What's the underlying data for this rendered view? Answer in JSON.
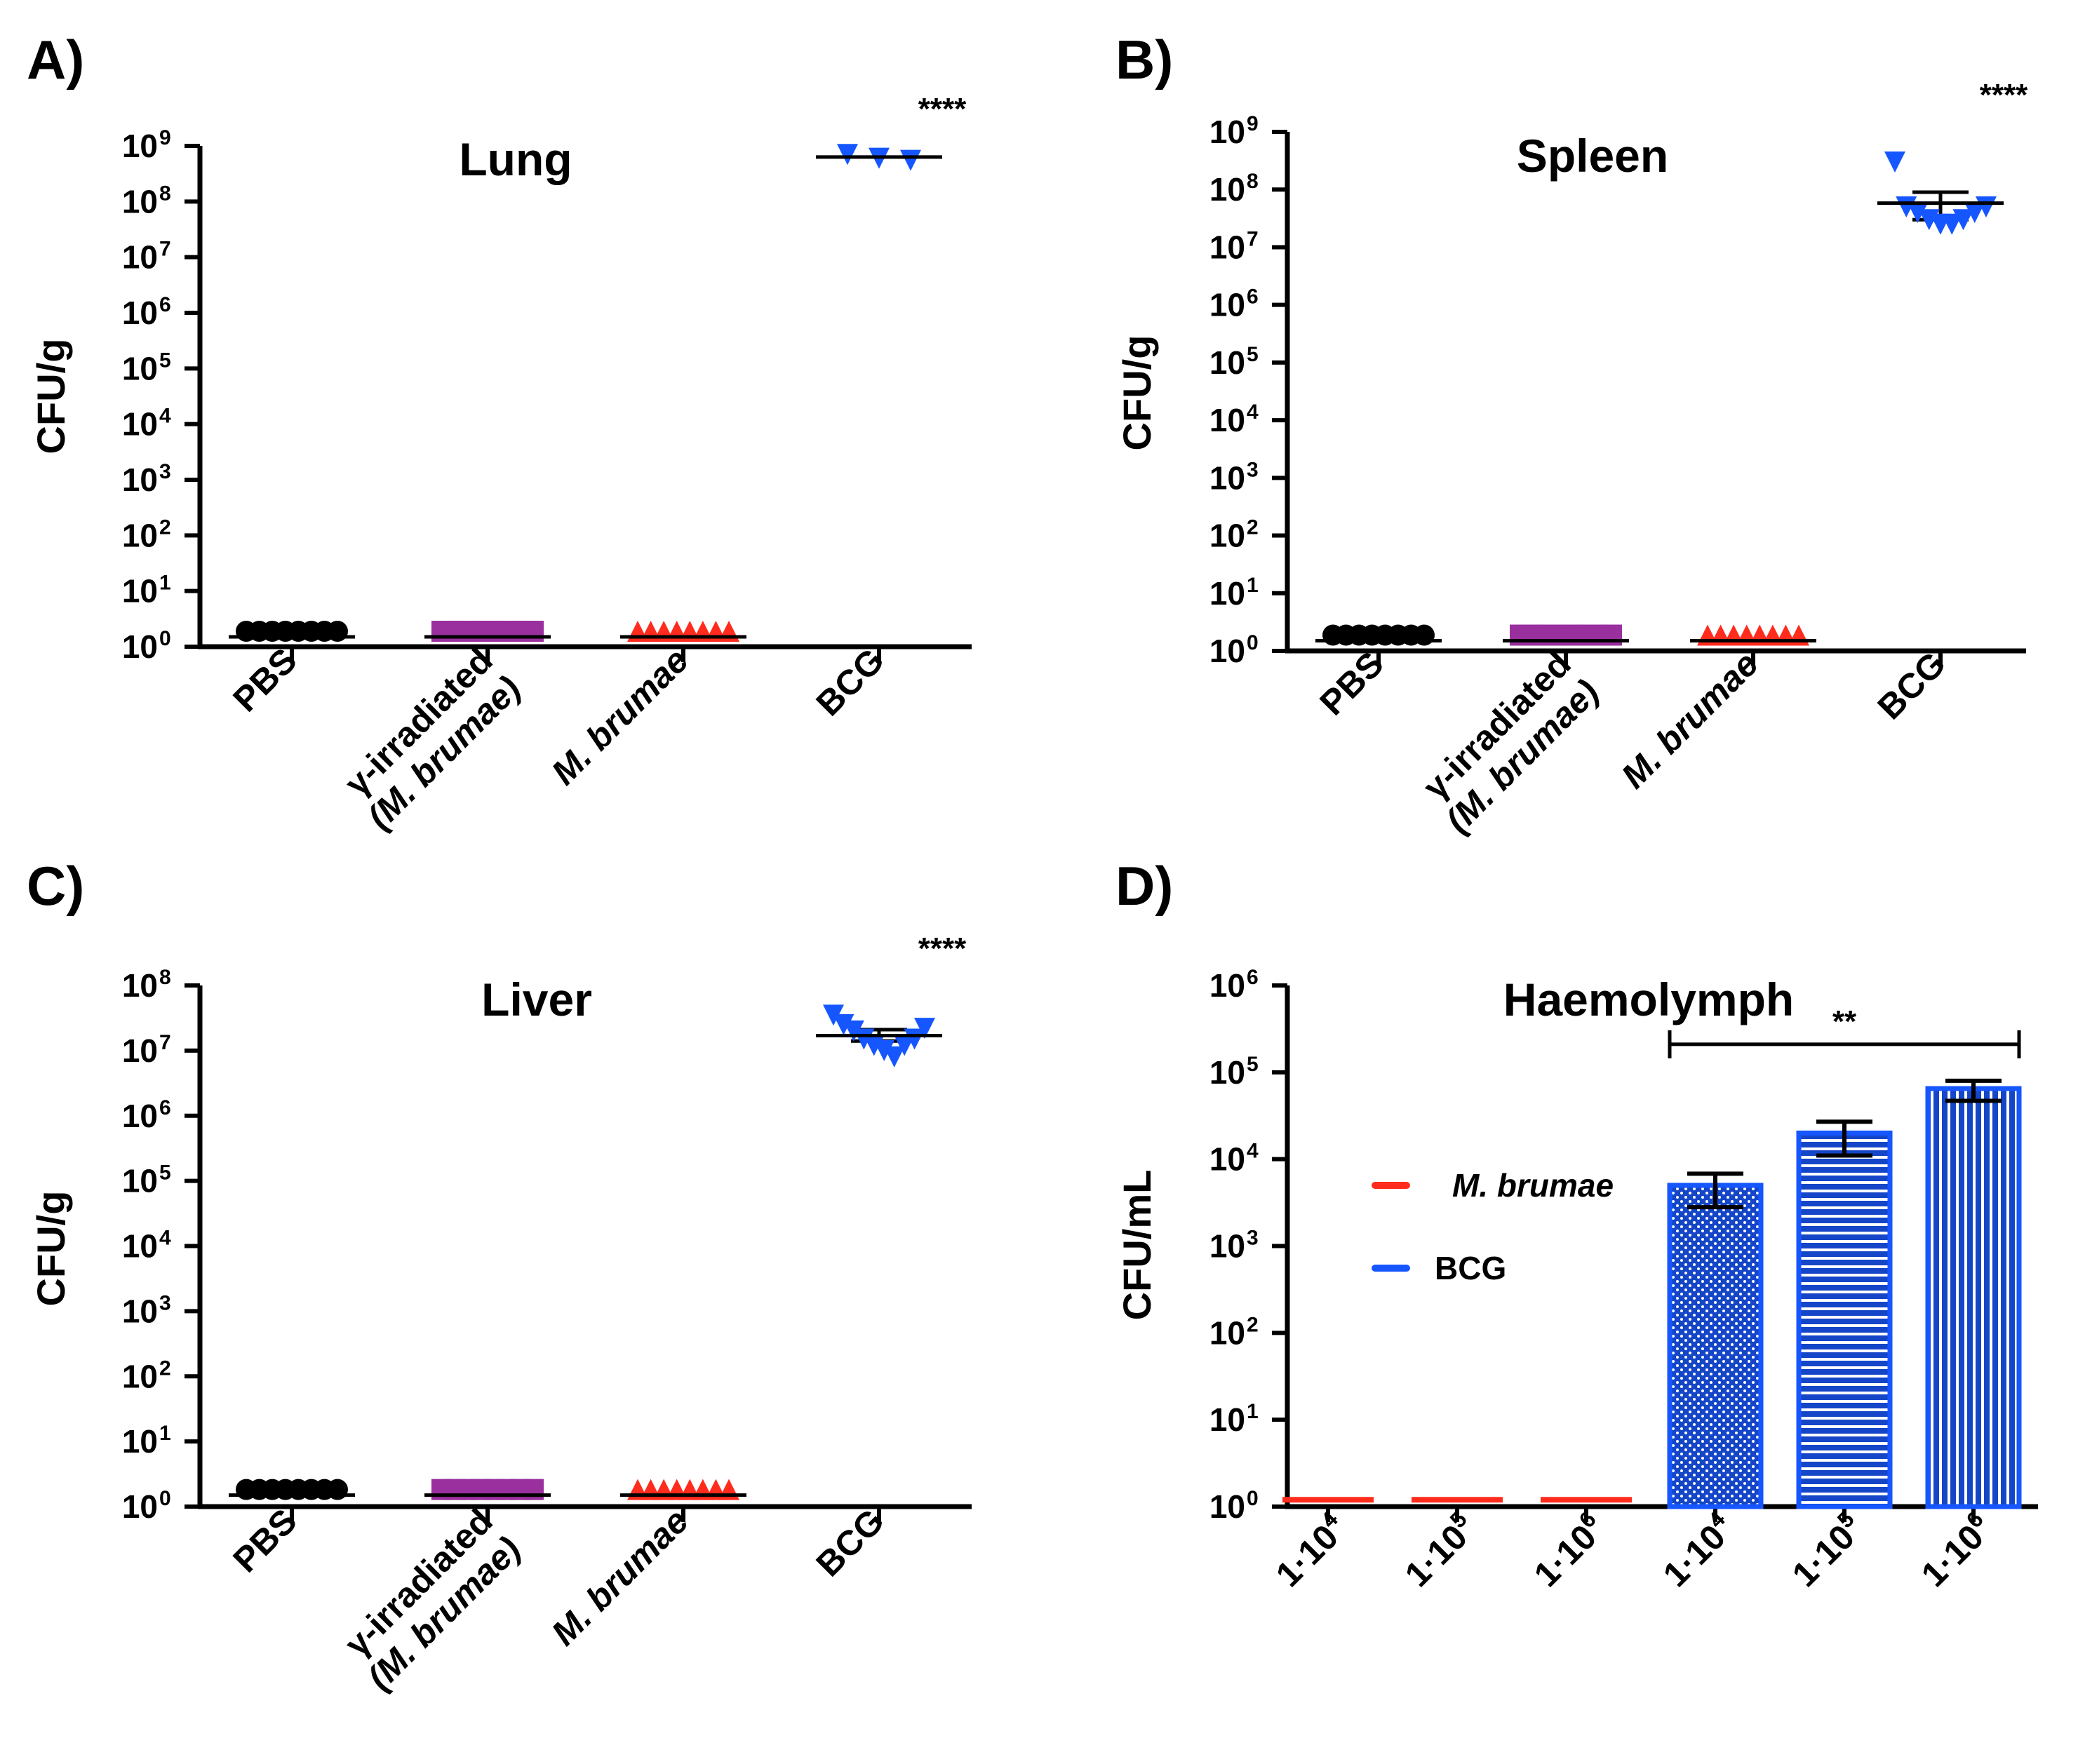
{
  "figure": {
    "colors": {
      "pbs": "#000000",
      "gamma": "#9a2f9e",
      "brumae": "#ff2b1c",
      "bcg": "#1656ff",
      "axis": "#000000"
    }
  },
  "chart_data": [
    {
      "panel": "A)",
      "type": "scatter",
      "title": "Lung",
      "ylabel": "CFU/g",
      "yscale": "log10",
      "ylim": [
        1,
        1000000000
      ],
      "yticks": [
        "10",
        "10",
        "10",
        "10",
        "10",
        "10",
        "10",
        "10",
        "10",
        "10"
      ],
      "yexponents": [
        "0",
        "1",
        "2",
        "3",
        "4",
        "5",
        "6",
        "7",
        "8",
        "9"
      ],
      "categories": [
        {
          "label": "PBS",
          "italic": false
        },
        {
          "label": "γ-irradiated",
          "label2": "(M. brumae)",
          "italic2": true
        },
        {
          "label": "M. brumae",
          "italic": true
        },
        {
          "label": "BCG",
          "italic": false
        }
      ],
      "series": [
        {
          "name": "PBS",
          "marker": "circle",
          "color": "#000000",
          "values": [
            1.5,
            1.5,
            1.5,
            1.5,
            1.5,
            1.5,
            1.5,
            1.5
          ],
          "mean": 1.5
        },
        {
          "name": "γ-irradiated (M. brumae)",
          "marker": "square",
          "color": "#9a2f9e",
          "values": [
            1.5,
            1.5,
            1.5,
            1.5,
            1.5,
            1.5,
            1.5,
            1.5
          ],
          "mean": 1.5
        },
        {
          "name": "M. brumae",
          "marker": "triangle-up",
          "color": "#ff2b1c",
          "values": [
            1.5,
            1.5,
            1.5,
            1.5,
            1.5,
            1.5,
            1.5,
            1.5
          ],
          "mean": 1.5
        },
        {
          "name": "BCG",
          "marker": "triangle-down",
          "color": "#1656ff",
          "values": [
            700000000,
            600000000,
            550000000
          ],
          "mean": 630000000
        }
      ],
      "annotations": [
        {
          "text": "****",
          "category": 3
        }
      ]
    },
    {
      "panel": "B)",
      "type": "scatter",
      "title": "Spleen",
      "ylabel": "CFU/g",
      "yscale": "log10",
      "ylim": [
        1,
        1000000000
      ],
      "yticks": [
        "10",
        "10",
        "10",
        "10",
        "10",
        "10",
        "10",
        "10",
        "10",
        "10"
      ],
      "yexponents": [
        "0",
        "1",
        "2",
        "3",
        "4",
        "5",
        "6",
        "7",
        "8",
        "9"
      ],
      "categories": [
        {
          "label": "PBS",
          "italic": false
        },
        {
          "label": "γ-irradiated",
          "label2": "(M. brumae)",
          "italic2": true
        },
        {
          "label": "M. brumae",
          "italic": true
        },
        {
          "label": "BCG",
          "italic": false
        }
      ],
      "series": [
        {
          "name": "PBS",
          "marker": "circle",
          "color": "#000000",
          "values": [
            1.5,
            1.5,
            1.5,
            1.5,
            1.5,
            1.5,
            1.5,
            1.5
          ],
          "mean": 1.5
        },
        {
          "name": "γ-irradiated (M. brumae)",
          "marker": "square",
          "color": "#9a2f9e",
          "values": [
            1.5,
            1.5,
            1.5,
            1.5,
            1.5,
            1.5,
            1.5,
            1.5
          ],
          "mean": 1.5
        },
        {
          "name": "M. brumae",
          "marker": "triangle-up",
          "color": "#ff2b1c",
          "values": [
            1.5,
            1.5,
            1.5,
            1.5,
            1.5,
            1.5,
            1.5,
            1.5
          ],
          "mean": 1.5
        },
        {
          "name": "BCG",
          "marker": "triangle-down",
          "color": "#1656ff",
          "values": [
            300000000,
            50000000,
            40000000,
            30000000,
            25000000,
            25000000,
            30000000,
            40000000,
            50000000
          ],
          "mean": 58000000,
          "err": [
            30000000,
            90000000
          ]
        }
      ],
      "annotations": [
        {
          "text": "****",
          "category": 3
        }
      ]
    },
    {
      "panel": "C)",
      "type": "scatter",
      "title": "Liver",
      "ylabel": "CFU/g",
      "yscale": "log10",
      "ylim": [
        1,
        100000000
      ],
      "yticks": [
        "10",
        "10",
        "10",
        "10",
        "10",
        "10",
        "10",
        "10",
        "10"
      ],
      "yexponents": [
        "0",
        "1",
        "2",
        "3",
        "4",
        "5",
        "6",
        "7",
        "8"
      ],
      "categories": [
        {
          "label": "PBS",
          "italic": false
        },
        {
          "label": "γ-irradiated",
          "label2": "(M. brumae)",
          "italic2": true
        },
        {
          "label": "M. brumae",
          "italic": true
        },
        {
          "label": "BCG",
          "italic": false
        }
      ],
      "series": [
        {
          "name": "PBS",
          "marker": "circle",
          "color": "#000000",
          "values": [
            1.5,
            1.5,
            1.5,
            1.5,
            1.5,
            1.5,
            1.5,
            1.5
          ],
          "mean": 1.5
        },
        {
          "name": "γ-irradiated (M. brumae)",
          "marker": "square",
          "color": "#9a2f9e",
          "values": [
            1.5,
            1.5,
            1.5,
            1.5,
            1.5,
            1.5,
            1.5,
            1.5
          ],
          "mean": 1.5
        },
        {
          "name": "M. brumae",
          "marker": "triangle-up",
          "color": "#ff2b1c",
          "values": [
            1.5,
            1.5,
            1.5,
            1.5,
            1.5,
            1.5,
            1.5,
            1.5
          ],
          "mean": 1.5
        },
        {
          "name": "BCG",
          "marker": "triangle-down",
          "color": "#1656ff",
          "values": [
            35000000,
            25000000,
            20000000,
            15000000,
            12000000,
            10000000,
            8000000,
            12000000,
            15000000,
            22000000
          ],
          "mean": 17000000,
          "err": [
            14000000,
            21000000
          ]
        }
      ],
      "annotations": [
        {
          "text": "****",
          "category": 3
        }
      ]
    },
    {
      "panel": "D)",
      "type": "bar",
      "title": "Haemolymph",
      "ylabel": "CFU/mL",
      "yscale": "log10",
      "ylim": [
        1,
        1000000
      ],
      "yticks": [
        "10",
        "10",
        "10",
        "10",
        "10",
        "10",
        "10"
      ],
      "yexponents": [
        "0",
        "1",
        "2",
        "3",
        "4",
        "5",
        "6"
      ],
      "categories": [
        {
          "label": "1·10",
          "exp": "4"
        },
        {
          "label": "1·10",
          "exp": "5"
        },
        {
          "label": "1·10",
          "exp": "6"
        },
        {
          "label": "1·10",
          "exp": "4"
        },
        {
          "label": "1·10",
          "exp": "5"
        },
        {
          "label": "1·10",
          "exp": "6"
        }
      ],
      "series": [
        {
          "name": "M. brumae",
          "color": "#ff2b1c",
          "values": [
            1.2,
            1.2,
            1.2,
            null,
            null,
            null
          ]
        },
        {
          "name": "BCG",
          "color": "#1656ff",
          "values": [
            null,
            null,
            null,
            5000,
            20000,
            65000
          ],
          "err_low": [
            null,
            null,
            null,
            2800,
            11000,
            47000
          ],
          "err_high": [
            null,
            null,
            null,
            6800,
            27000,
            80000
          ]
        }
      ],
      "legend": [
        {
          "label": "M. brumae",
          "color": "#ff2b1c",
          "italic": true
        },
        {
          "label": "BCG",
          "color": "#1656ff",
          "italic": false
        }
      ],
      "annotations": [
        {
          "text": "**",
          "from": 3,
          "to": 5,
          "y": 210000
        }
      ]
    }
  ]
}
